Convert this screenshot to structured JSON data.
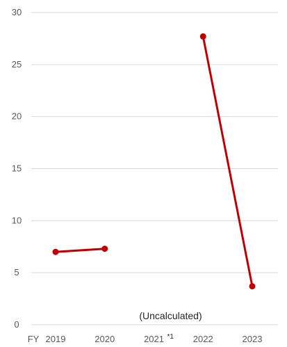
{
  "chart_data": {
    "type": "line",
    "title": "",
    "xlabel": "",
    "ylabel": "",
    "x_prefix": "FY",
    "categories": [
      "2019",
      "2020",
      "2021",
      "2022",
      "2023"
    ],
    "series": [
      {
        "values": [
          7.0,
          7.3,
          null,
          27.7,
          3.7
        ],
        "color": "#c00000"
      }
    ],
    "ylim": [
      0,
      30
    ],
    "yticks": [
      0,
      5,
      10,
      15,
      20,
      25,
      30
    ],
    "grid": true,
    "legend": "none",
    "annotations": [
      {
        "text": "(Uncalculated)",
        "category": "2021"
      }
    ],
    "footnote_mark": {
      "category": "2021",
      "text": "*1"
    }
  }
}
